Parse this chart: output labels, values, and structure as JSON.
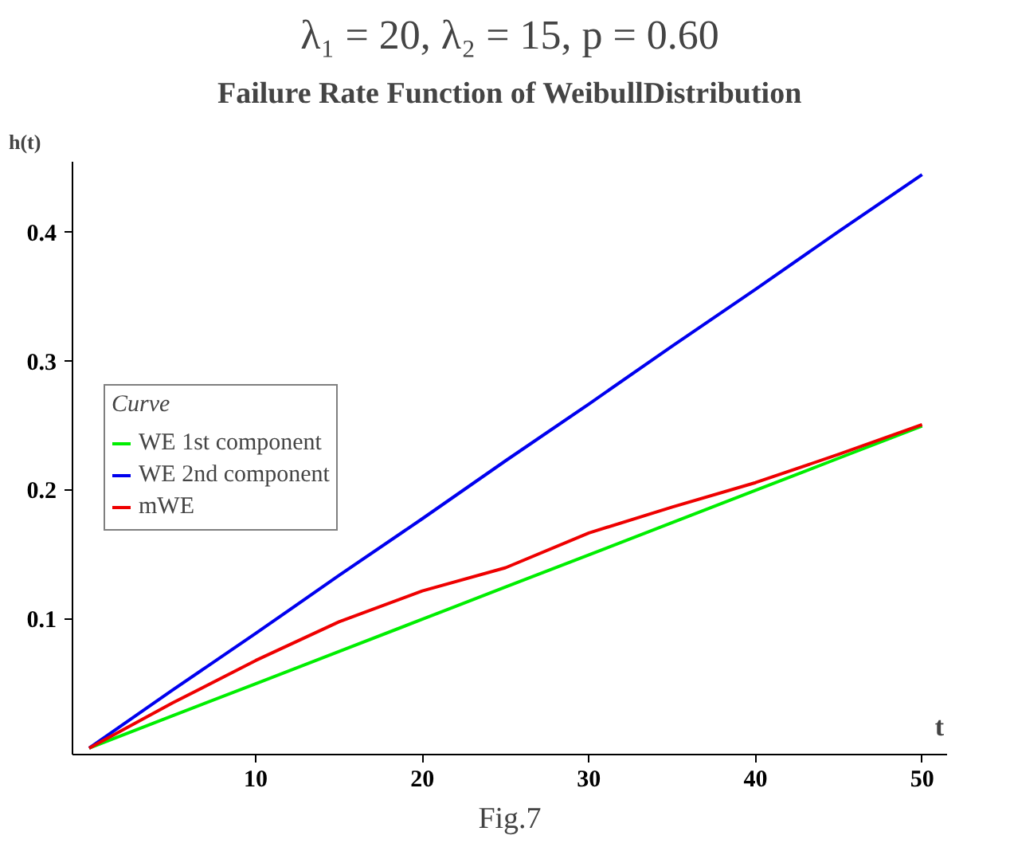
{
  "chart_data": {
    "type": "line",
    "title": "λ₁ = 20, λ₂ = 15, p = 0.60",
    "subtitle": "Failure Rate Function of WeibullDistribution",
    "xlabel": "t",
    "ylabel": "h(t)",
    "legend_title": "Curve",
    "annotations": [
      "Fig.7"
    ],
    "x": [
      0,
      5,
      10,
      15,
      20,
      25,
      30,
      35,
      40,
      45,
      50
    ],
    "series": [
      {
        "name": "WE 1st component",
        "color": "#00ee00",
        "values": [
          0,
          0.025,
          0.05,
          0.075,
          0.1,
          0.125,
          0.15,
          0.175,
          0.2,
          0.225,
          0.25
        ]
      },
      {
        "name": "WE 2nd component",
        "color": "#0000ee",
        "values": [
          0,
          0.045,
          0.089,
          0.134,
          0.178,
          0.223,
          0.267,
          0.312,
          0.356,
          0.401,
          0.445
        ]
      },
      {
        "name": "mWE",
        "color": "#ee0000",
        "values": [
          0,
          0.035,
          0.068,
          0.098,
          0.122,
          0.14,
          0.167,
          0.187,
          0.206,
          0.228,
          0.251
        ]
      }
    ],
    "xlim": [
      -1,
      51.5
    ],
    "ylim": [
      -0.005,
      0.455
    ],
    "xticks": [
      10,
      20,
      30,
      40,
      50
    ],
    "yticks": [
      0.1,
      0.2,
      0.3,
      0.4
    ],
    "grid": false,
    "legend": "left",
    "marker": "none",
    "line_style": "solid"
  }
}
